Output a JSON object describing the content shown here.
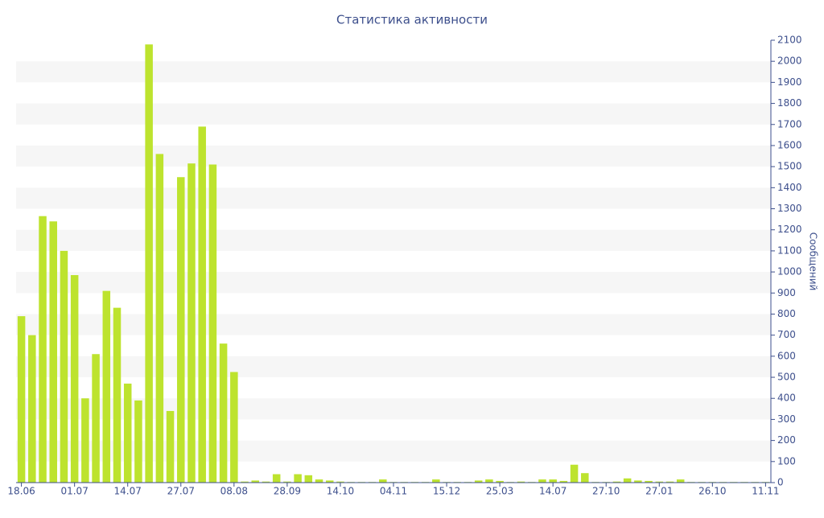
{
  "chart_data": {
    "type": "bar",
    "title": "Статистика активности",
    "y_axis_label": "Сообщений",
    "categories": [
      "18.06",
      null,
      null,
      null,
      null,
      "01.07",
      null,
      null,
      null,
      null,
      "14.07",
      null,
      null,
      null,
      null,
      "27.07",
      null,
      null,
      null,
      null,
      "08.08",
      null,
      null,
      null,
      null,
      "28.09",
      null,
      null,
      null,
      null,
      "14.10",
      null,
      null,
      null,
      null,
      "04.11",
      null,
      null,
      null,
      null,
      "15.12",
      null,
      null,
      null,
      null,
      "25.03",
      null,
      null,
      null,
      null,
      "14.07",
      null,
      null,
      null,
      null,
      "27.10",
      null,
      null,
      null,
      null,
      "27.01",
      null,
      null,
      null,
      null,
      "26.10",
      null,
      null,
      null,
      null,
      "11.11"
    ],
    "values": [
      790,
      700,
      1265,
      1240,
      1100,
      985,
      400,
      610,
      910,
      830,
      470,
      390,
      2080,
      1560,
      340,
      1450,
      1515,
      1690,
      1510,
      660,
      525,
      5,
      10,
      5,
      40,
      5,
      40,
      35,
      15,
      10,
      5,
      3,
      3,
      3,
      15,
      3,
      3,
      3,
      3,
      15,
      3,
      3,
      3,
      10,
      15,
      8,
      3,
      5,
      3,
      15,
      15,
      8,
      85,
      45,
      3,
      3,
      5,
      20,
      10,
      8,
      5,
      5,
      15,
      3,
      3,
      3,
      3,
      3,
      3,
      3,
      3
    ],
    "color": "#bde32e",
    "ylim": [
      0,
      2100
    ],
    "yticks": [
      0,
      100,
      200,
      300,
      400,
      500,
      600,
      700,
      800,
      900,
      1000,
      1100,
      1200,
      1300,
      1400,
      1500,
      1600,
      1700,
      1800,
      1900,
      2000,
      2100
    ],
    "grid": "bands",
    "y_axis_side": "right"
  }
}
